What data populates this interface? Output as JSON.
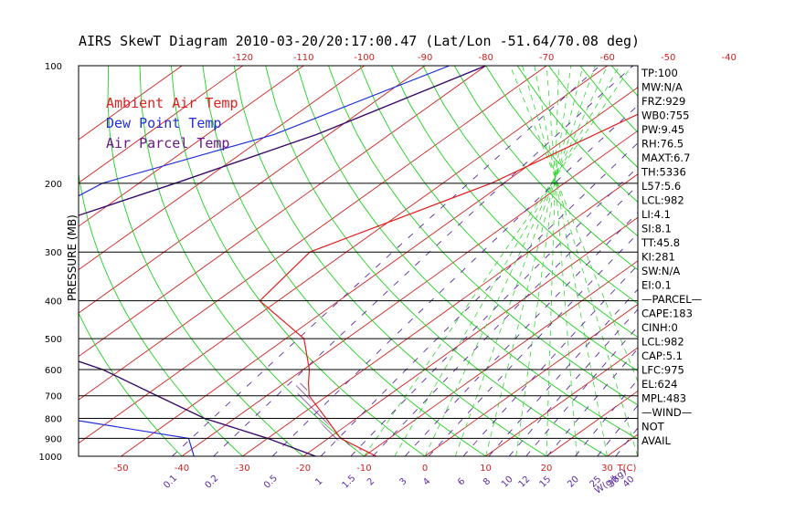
{
  "chart_data": {
    "type": "line",
    "title": "AIRS SkewT Diagram 2010-03-20/20:17:00.47 (Lat/Lon -51.64/70.08 deg)",
    "ylabel": "PRESSURE (MB)",
    "pressure_ticks": [
      "100",
      "200",
      "300",
      "400",
      "500",
      "600",
      "700",
      "800",
      "900",
      "1000"
    ],
    "pressure_levels": [
      100,
      200,
      300,
      400,
      500,
      600,
      700,
      800,
      900,
      1000
    ],
    "temp_ticks_top": [
      "-120",
      "-110",
      "-100",
      "-90",
      "-80",
      "-70",
      "-60",
      "-50",
      "-40"
    ],
    "temp_ticks_bottom": [
      "-50",
      "-40",
      "-30",
      "-20",
      "-10",
      "0",
      "10",
      "20",
      "30"
    ],
    "temp_axis_label": "T(C)",
    "mixing_ratio_labels": [
      "0.1",
      "0.2",
      "0.5",
      "1",
      "1.5",
      "2",
      "3",
      "4",
      "6",
      "8",
      "10",
      "12",
      "15",
      "20",
      "25",
      "30",
      "40"
    ],
    "mixing_ratio_axis_label": "W(g/kg)",
    "legend": [
      {
        "label": "Ambient Air Temp",
        "color": "#e02020"
      },
      {
        "label": "Dew Point Temp",
        "color": "#2030d8"
      },
      {
        "label": "Air Parcel Temp",
        "color": "#6a1a8a"
      }
    ],
    "colors": {
      "temperature": "#e02020",
      "dewpoint": "#2030d8",
      "parcel": "#3a0a6a",
      "dry_adiabats": "#20d020",
      "moist_adiabats": "#30d830",
      "mixing_ratio": "#5a2aa0",
      "isotherms": "#d02020",
      "isobars": "#000000",
      "cape_hatch": "#6a1a8a"
    },
    "series": [
      {
        "name": "Ambient Air Temp",
        "pressure": [
          100,
          200,
          300,
          400,
          500,
          600,
          650,
          700,
          800,
          900,
          1000
        ],
        "temperature": [
          -38,
          -52,
          -66,
          -63,
          -47,
          -39,
          -36,
          -33,
          -25,
          -18,
          -8
        ]
      },
      {
        "name": "Dew Point Temp",
        "pressure": [
          100,
          150,
          200,
          250,
          300,
          400,
          500,
          600,
          700,
          800,
          900,
          1000
        ],
        "temperature": [
          -86,
          -99,
          -116,
          -119,
          -117,
          -103,
          -93,
          -83,
          -77,
          -68,
          -43,
          -38
        ]
      },
      {
        "name": "Air Parcel Temp",
        "pressure": [
          100,
          150,
          200,
          250,
          300,
          400,
          500,
          600,
          700,
          800,
          900,
          1000
        ],
        "temperature": [
          -80,
          -92,
          -104,
          -114,
          -118,
          -122,
          -95,
          -73,
          -58,
          -45,
          -30,
          -18
        ]
      }
    ],
    "indices": [
      "TP:100",
      "MW:N/A",
      "FRZ:929",
      "WB0:755",
      "PW:9.45",
      "RH:76.5",
      "MAXT:6.7",
      "TH:5336",
      "L57:5.6",
      "LCL:982",
      "LI:4.1",
      "SI:8.1",
      "TT:45.8",
      "KI:281",
      "SW:N/A",
      "EI:0.1",
      "—PARCEL—",
      "CAPE:183",
      "CINH:0",
      "LCL:982",
      "CAP:5.1",
      "LFC:975",
      "EL:624",
      "MPL:483",
      "—WIND—",
      "NOT",
      "AVAIL"
    ]
  }
}
